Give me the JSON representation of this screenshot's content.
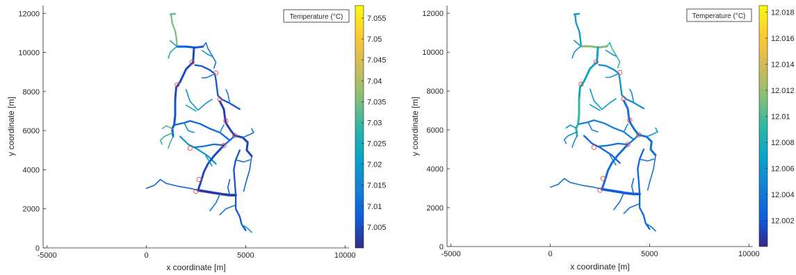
{
  "chart_data": [
    {
      "type": "network_map",
      "xlabel": "x coordinate [m]",
      "ylabel": "y coordinate [m]",
      "xlim": [
        -5200,
        10200
      ],
      "ylim": [
        0,
        12400
      ],
      "xticks": [
        -5000,
        0,
        5000,
        10000
      ],
      "yticks": [
        0,
        2000,
        4000,
        6000,
        8000,
        10000,
        12000
      ],
      "legend": "Temperature (°C)",
      "legend_position": "top-right",
      "colormap": "parula",
      "colorbar": {
        "min": 7.0,
        "max": 7.058,
        "ticks": [
          7.005,
          7.01,
          7.015,
          7.02,
          7.025,
          7.03,
          7.035,
          7.04,
          7.045,
          7.05,
          7.055
        ],
        "tick_labels": [
          "7.005",
          "7.01",
          "7.015",
          "7.02",
          "7.025",
          "7.03",
          "7.035",
          "7.04",
          "7.045",
          "7.05",
          "7.055"
        ]
      }
    },
    {
      "type": "network_map",
      "xlabel": "x coordinate [m]",
      "ylabel": "y coordinate [m]",
      "xlim": [
        -5200,
        10200
      ],
      "ylim": [
        0,
        12400
      ],
      "xticks": [
        -5000,
        0,
        5000,
        10000
      ],
      "yticks": [
        0,
        2000,
        4000,
        6000,
        8000,
        10000,
        12000
      ],
      "legend": "Temperature (°C)",
      "legend_position": "top-right",
      "colormap": "parula",
      "colorbar": {
        "min": 12.0,
        "max": 12.0185,
        "ticks": [
          12.002,
          12.004,
          12.006,
          12.008,
          12.01,
          12.012,
          12.014,
          12.016,
          12.018
        ],
        "tick_labels": [
          "12.002",
          "12.004",
          "12.006",
          "12.008",
          "12.01",
          "12.012",
          "12.014",
          "12.016",
          "12.018"
        ]
      }
    }
  ],
  "network": {
    "segments": [
      {
        "path": [
          [
            1200,
            11950
          ],
          [
            1450,
            11980
          ]
        ],
        "w": 2,
        "t": [
          0.55,
          0.3
        ]
      },
      {
        "path": [
          [
            1250,
            11900
          ],
          [
            1300,
            11500
          ],
          [
            1450,
            11100
          ],
          [
            1500,
            10800
          ],
          [
            1550,
            10300
          ]
        ],
        "w": 2,
        "t": [
          0.6,
          0.35
        ]
      },
      {
        "path": [
          [
            1550,
            10300
          ],
          [
            1400,
            10200
          ],
          [
            1200,
            10000
          ],
          [
            1100,
            9700
          ]
        ],
        "w": 1,
        "t": [
          0.45,
          0.3
        ]
      },
      {
        "path": [
          [
            1550,
            10300
          ],
          [
            2000,
            10300
          ],
          [
            2450,
            10250
          ],
          [
            2850,
            10300
          ]
        ],
        "w": 3,
        "t": [
          0.12,
          0.62
        ]
      },
      {
        "path": [
          [
            2850,
            10300
          ],
          [
            3000,
            10500
          ],
          [
            3100,
            10200
          ],
          [
            3250,
            9950
          ],
          [
            3500,
            9500
          ],
          [
            3400,
            9200
          ]
        ],
        "w": 1,
        "t": [
          0.2,
          0.5
        ]
      },
      {
        "path": [
          [
            2400,
            10250
          ],
          [
            2350,
            9500
          ],
          [
            2000,
            9150
          ],
          [
            1700,
            8500
          ],
          [
            1500,
            8200
          ],
          [
            1450,
            7600
          ]
        ],
        "w": 3,
        "t": [
          0.08,
          0.4
        ]
      },
      {
        "path": [
          [
            1450,
            7600
          ],
          [
            1450,
            6800
          ],
          [
            1400,
            6300
          ],
          [
            1300,
            6100
          ],
          [
            1350,
            5700
          ]
        ],
        "w": 3,
        "t": [
          0.1,
          0.5
        ]
      },
      {
        "path": [
          [
            2450,
            9350
          ],
          [
            2800,
            9300
          ],
          [
            3200,
            9100
          ],
          [
            3450,
            8900
          ],
          [
            3500,
            8600
          ],
          [
            3550,
            8200
          ],
          [
            3600,
            7800
          ],
          [
            3800,
            7600
          ],
          [
            4200,
            7400
          ],
          [
            4700,
            7100
          ]
        ],
        "w": 2,
        "t": [
          0.1,
          0.3
        ]
      },
      {
        "path": [
          [
            3700,
            7500
          ],
          [
            3900,
            7100
          ],
          [
            3950,
            6700
          ],
          [
            4000,
            6400
          ],
          [
            4250,
            6000
          ],
          [
            4450,
            5750
          ],
          [
            4850,
            5650
          ],
          [
            5100,
            5400
          ],
          [
            5050,
            5000
          ],
          [
            5300,
            4700
          ]
        ],
        "w": 3,
        "t": [
          0.06,
          0.2
        ]
      },
      {
        "path": [
          [
            4850,
            5650
          ],
          [
            5200,
            5800
          ],
          [
            5400,
            5900
          ],
          [
            5300,
            6100
          ]
        ],
        "w": 1,
        "t": [
          0.2,
          0.3
        ]
      },
      {
        "path": [
          [
            2000,
            8100
          ],
          [
            2200,
            7500
          ],
          [
            2600,
            7050
          ],
          [
            3000,
            7400
          ],
          [
            3300,
            7600
          ]
        ],
        "w": 1,
        "t": [
          0.3,
          0.35
        ]
      },
      {
        "path": [
          [
            2000,
            7300
          ],
          [
            2500,
            7000
          ]
        ],
        "w": 1,
        "t": [
          0.45,
          0.35
        ]
      },
      {
        "path": [
          [
            1450,
            6300
          ],
          [
            1900,
            6400
          ],
          [
            2200,
            6500
          ],
          [
            2700,
            6350
          ],
          [
            3200,
            6100
          ],
          [
            3700,
            5900
          ],
          [
            4200,
            5500
          ],
          [
            4450,
            5750
          ]
        ],
        "w": 2,
        "t": [
          0.15,
          0.25
        ]
      },
      {
        "path": [
          [
            1300,
            6100
          ],
          [
            1000,
            6250
          ],
          [
            800,
            6100
          ]
        ],
        "w": 1,
        "t": [
          0.55,
          0.3
        ]
      },
      {
        "path": [
          [
            1350,
            5900
          ],
          [
            900,
            5700
          ],
          [
            700,
            5500
          ],
          [
            800,
            5300
          ]
        ],
        "w": 1,
        "t": [
          0.5,
          0.3
        ]
      },
      {
        "path": [
          [
            1350,
            5700
          ],
          [
            1200,
            5400
          ],
          [
            1100,
            5100
          ]
        ],
        "w": 1,
        "t": [
          0.5,
          0.3
        ]
      },
      {
        "path": [
          [
            1700,
            5700
          ],
          [
            2100,
            5300
          ],
          [
            2500,
            5100
          ],
          [
            3100,
            4700
          ],
          [
            3500,
            4300
          ]
        ],
        "w": 2,
        "t": [
          0.35,
          0.15
        ]
      },
      {
        "path": [
          [
            2400,
            5150
          ],
          [
            2900,
            5200
          ],
          [
            3400,
            5300
          ],
          [
            3900,
            5250
          ],
          [
            4200,
            5500
          ]
        ],
        "w": 2,
        "t": [
          0.2,
          0.2
        ]
      },
      {
        "path": [
          [
            3900,
            5250
          ],
          [
            3400,
            4700
          ],
          [
            3100,
            4300
          ],
          [
            2900,
            3900
          ],
          [
            2750,
            3400
          ],
          [
            2600,
            2950
          ]
        ],
        "w": 3,
        "t": [
          0.08,
          0.18
        ]
      },
      {
        "path": [
          [
            2600,
            2950
          ],
          [
            3200,
            2850
          ],
          [
            3800,
            2750
          ],
          [
            4200,
            2700
          ],
          [
            4500,
            2700
          ]
        ],
        "w": 4,
        "t": [
          0.04,
          0.12
        ]
      },
      {
        "path": [
          [
            4700,
            5000
          ],
          [
            4500,
            4500
          ],
          [
            4400,
            4000
          ],
          [
            4450,
            3400
          ],
          [
            4500,
            2700
          ],
          [
            4500,
            2000
          ],
          [
            4700,
            1600
          ],
          [
            4800,
            1200
          ],
          [
            5000,
            900
          ]
        ],
        "w": 2,
        "t": [
          0.1,
          0.15
        ]
      },
      {
        "path": [
          [
            4800,
            1200
          ],
          [
            5100,
            1000
          ],
          [
            5300,
            800
          ]
        ],
        "w": 1,
        "t": [
          0.35,
          0.2
        ]
      },
      {
        "path": [
          [
            2600,
            2950
          ],
          [
            2200,
            3050
          ],
          [
            1600,
            3150
          ],
          [
            1000,
            3300
          ],
          [
            700,
            3500
          ]
        ],
        "w": 1,
        "t": [
          0.15,
          0.2
        ]
      },
      {
        "path": [
          [
            700,
            3500
          ],
          [
            400,
            3200
          ],
          [
            0,
            3050
          ]
        ],
        "w": 1,
        "t": [
          0.15,
          0.2
        ]
      },
      {
        "path": [
          [
            5300,
            4700
          ],
          [
            5200,
            4000
          ],
          [
            5000,
            3300
          ],
          [
            4900,
            2900
          ]
        ],
        "w": 1,
        "t": [
          0.15,
          0.2
        ]
      },
      {
        "path": [
          [
            3700,
            2750
          ],
          [
            3500,
            2300
          ],
          [
            3200,
            1900
          ]
        ],
        "w": 1,
        "t": [
          0.2,
          0.2
        ]
      },
      {
        "path": [
          [
            4500,
            2200
          ],
          [
            4000,
            2000
          ],
          [
            3700,
            1700
          ]
        ],
        "w": 1,
        "t": [
          0.2,
          0.2
        ]
      },
      {
        "path": [
          [
            3000,
            4700
          ],
          [
            3300,
            4200
          ]
        ],
        "w": 1,
        "t": [
          0.3,
          0.25
        ]
      },
      {
        "path": [
          [
            1900,
            6400
          ],
          [
            2100,
            6000
          ],
          [
            2400,
            5900
          ]
        ],
        "w": 1,
        "t": [
          0.3,
          0.25
        ]
      },
      {
        "path": [
          [
            3450,
            8900
          ],
          [
            3000,
            8700
          ],
          [
            2800,
            8700
          ]
        ],
        "w": 1,
        "t": [
          0.25,
          0.35
        ]
      },
      {
        "path": [
          [
            1550,
            10300
          ],
          [
            1200,
            10600
          ]
        ],
        "w": 1,
        "t": [
          0.4,
          0.3
        ]
      },
      {
        "path": [
          [
            2800,
            10100
          ],
          [
            3100,
            9900
          ],
          [
            3300,
            9800
          ]
        ],
        "w": 1,
        "t": [
          0.35,
          0.3
        ]
      },
      {
        "path": [
          [
            4200,
            2700
          ],
          [
            4100,
            3100
          ],
          [
            4200,
            3500
          ]
        ],
        "w": 1,
        "t": [
          0.15,
          0.15
        ]
      },
      {
        "path": [
          [
            3700,
            5900
          ],
          [
            3900,
            6300
          ]
        ],
        "w": 1,
        "t": [
          0.3,
          0.3
        ]
      },
      {
        "path": [
          [
            4200,
            7400
          ],
          [
            4100,
            7900
          ],
          [
            4000,
            8100
          ]
        ],
        "w": 1,
        "t": [
          0.25,
          0.3
        ]
      },
      {
        "path": [
          [
            4500,
            4500
          ],
          [
            4900,
            4400
          ],
          [
            5200,
            4500
          ]
        ],
        "w": 1,
        "t": [
          0.2,
          0.2
        ]
      }
    ],
    "markers": [
      [
        2300,
        9500
      ],
      [
        3500,
        8950
      ],
      [
        1550,
        8350
      ],
      [
        3700,
        7600
      ],
      [
        4000,
        6500
      ],
      [
        4450,
        5750
      ],
      [
        3900,
        5250
      ],
      [
        2200,
        5100
      ],
      [
        2650,
        3500
      ],
      [
        2500,
        2900
      ]
    ]
  }
}
